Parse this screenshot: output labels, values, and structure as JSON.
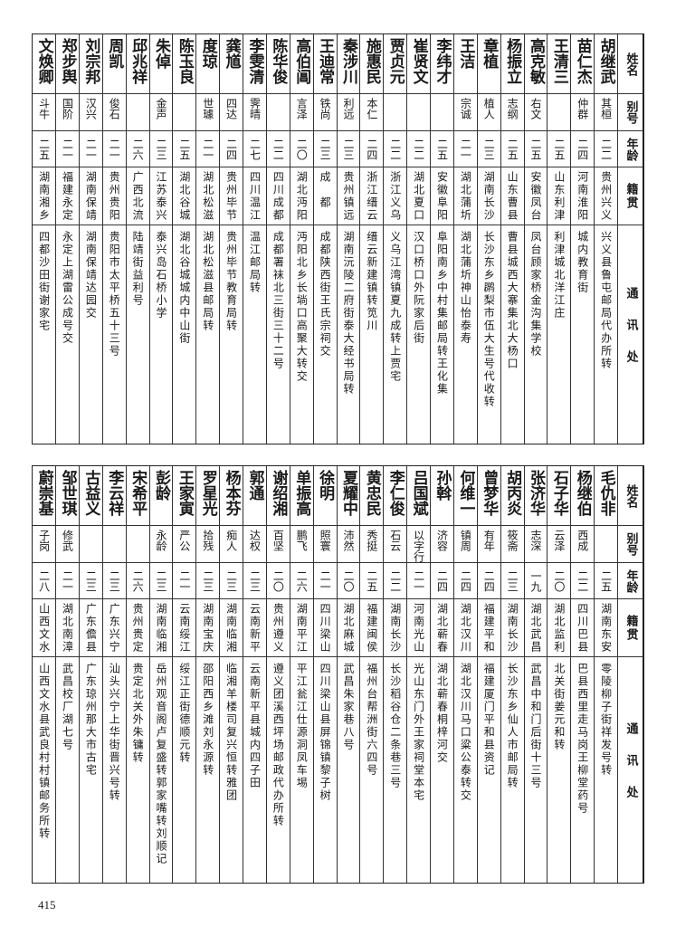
{
  "headers": {
    "name": "姓名",
    "alias": "别号",
    "age": "年龄",
    "origin": "籍贯",
    "address": "通讯处"
  },
  "top_table": [
    {
      "name": "胡继武",
      "alias": "其桓",
      "age": "二二",
      "origin": "贵州兴义",
      "address": "兴义县鲁屯邮局代办所转"
    },
    {
      "name": "苗仁杰",
      "alias": "仲群",
      "age": "二四",
      "origin": "河南淮阳",
      "address": "城内教育街"
    },
    {
      "name": "王清三",
      "alias": "",
      "age": "二五",
      "origin": "山东利津",
      "address": "利津城北洋江庄"
    },
    {
      "name": "高克敏",
      "alias": "右文",
      "age": "二五",
      "origin": "安徽凤台",
      "address": "凤台顾家桥金沟集学校"
    },
    {
      "name": "杨振立",
      "alias": "志纲",
      "age": "二五",
      "origin": "山东曹县",
      "address": "曹县城西大寨集北大杨口"
    },
    {
      "name": "章植",
      "alias": "植人",
      "age": "二三",
      "origin": "湖南长沙",
      "address": "长沙东乡䴙梨市伍大生号代收转"
    },
    {
      "name": "王洁",
      "alias": "宗诚",
      "age": "二一",
      "origin": "湖北蒲圻",
      "address": "湖北蒲圻神山怡泰寿"
    },
    {
      "name": "李纬才",
      "alias": "",
      "age": "二五",
      "origin": "安徽阜阳",
      "address": "阜阳南乡中村集邮局转王化集"
    },
    {
      "name": "崔贤文",
      "alias": "",
      "age": "二二",
      "origin": "湖北夏口",
      "address": "汉口桥口外阮家后街"
    },
    {
      "name": "贾贞元",
      "alias": "",
      "age": "二二",
      "origin": "浙江义乌",
      "address": "义乌江湾镇夏九成转上贾宅"
    },
    {
      "name": "施惠民",
      "alias": "本仁",
      "age": "二四",
      "origin": "浙江缙云",
      "address": "缙云新建镇转笕川"
    },
    {
      "name": "秦涉川",
      "alias": "利远",
      "age": "二三",
      "origin": "贵州镇远",
      "address": "湖南沅陵二府街泰大经书局转"
    },
    {
      "name": "王迪常",
      "alias": "铁尚",
      "age": "二三",
      "origin": "成　都",
      "address": "成都陕西街王氏宗祠交"
    },
    {
      "name": "高伯阊",
      "alias": "言泽",
      "age": "二〇",
      "origin": "湖北沔阳",
      "address": "沔阳北乡长埫口高聚大转交"
    },
    {
      "name": "陈华俊",
      "alias": "",
      "age": "二二",
      "origin": "四川成都",
      "address": "成都署袜北三街三十二号"
    },
    {
      "name": "李雯清",
      "alias": "霁晴",
      "age": "二七",
      "origin": "四川温江",
      "address": "温江邮局转"
    },
    {
      "name": "龚馗",
      "alias": "四达",
      "age": "二四",
      "origin": "贵州毕节",
      "address": "贵州毕节教育局转"
    },
    {
      "name": "度琼",
      "alias": "世璩",
      "age": "二一",
      "origin": "湖北松滋",
      "address": "湖北松滋县邮局转"
    },
    {
      "name": "陈玉良",
      "alias": "",
      "age": "二五",
      "origin": "湖北谷城",
      "address": "湖北谷城城内中山街"
    },
    {
      "name": "朱倬",
      "alias": "金声",
      "age": "二三",
      "origin": "江苏泰兴",
      "address": "泰兴岛石桥小学"
    },
    {
      "name": "邱兆祥",
      "alias": "",
      "age": "二六",
      "origin": "广西北流",
      "address": "陆靖街益利号"
    },
    {
      "name": "周凯",
      "alias": "俊石",
      "age": "二一",
      "origin": "贵州贵阳",
      "address": "贵阳市太平桥五十三号"
    },
    {
      "name": "刘宗邦",
      "alias": "汉兴",
      "age": "二一",
      "origin": "湖南保靖",
      "address": "湖南保靖达园交"
    },
    {
      "name": "郑步舆",
      "alias": "国阶",
      "age": "二一",
      "origin": "福建永定",
      "address": "永定上湖雷公成号交"
    },
    {
      "name": "文焕卿",
      "alias": "斗牛",
      "age": "二五",
      "origin": "湖南湘乡",
      "address": "四都沙田街谢家宅"
    }
  ],
  "bottom_table": [
    {
      "name": "毛仇非",
      "alias": "",
      "age": "二五",
      "origin": "湖南东安",
      "address": "零陵柳子街祥发号转"
    },
    {
      "name": "杨继伯",
      "alias": "西成",
      "age": "二二",
      "origin": "四川巴县",
      "address": "巴县西里走马岗王柳堂药号"
    },
    {
      "name": "石子华",
      "alias": "云泽",
      "age": "二〇",
      "origin": "湖北监利",
      "address": "北关街姜元和转"
    },
    {
      "name": "张济华",
      "alias": "志深",
      "age": "一九",
      "origin": "湖北武昌",
      "address": "武昌中和门后街十三号"
    },
    {
      "name": "胡丙炎",
      "alias": "筱斋",
      "age": "二三",
      "origin": "湖南长沙",
      "address": "长沙东乡仙人市邮局转"
    },
    {
      "name": "曾梦华",
      "alias": "有年",
      "age": "二四",
      "origin": "福建平和",
      "address": "福建厦门平和县资记"
    },
    {
      "name": "何维一",
      "alias": "镇周",
      "age": "二四",
      "origin": "湖北汉川",
      "address": "湖北汉川马口粱公泰转交"
    },
    {
      "name": "孙斡",
      "alias": "济容",
      "age": "二四",
      "origin": "湖北蕲春",
      "address": "湖北蕲春桐梓河交"
    },
    {
      "name": "吕国斌",
      "alias": "以字行",
      "age": "二一",
      "origin": "河南光山",
      "address": "光山东门外王家祠堂本宅"
    },
    {
      "name": "李仁俊",
      "alias": "石云",
      "age": "二二",
      "origin": "湖南长沙",
      "address": "长沙稻谷仓二条巷三号"
    },
    {
      "name": "黄忠民",
      "alias": "秀挺",
      "age": "二五",
      "origin": "福建闽侯",
      "address": "福州台帮洲街六四号"
    },
    {
      "name": "夏耀中",
      "alias": "沛然",
      "age": "二〇",
      "origin": "湖北麻城",
      "address": "武昌朱家巷八号"
    },
    {
      "name": "徐明",
      "alias": "照寰",
      "age": "二一",
      "origin": "四川梁山",
      "address": "四川梁山县屏锦镇黎子树"
    },
    {
      "name": "单振高",
      "alias": "鹏飞",
      "age": "二六",
      "origin": "湖南平江",
      "address": "平江瓮江仕源洞凤车埸"
    },
    {
      "name": "谢绍湘",
      "alias": "百坚",
      "age": "二〇",
      "origin": "贵州遵义",
      "address": "遵义团溪西坪场邮政代办所转"
    },
    {
      "name": "郭通",
      "alias": "达权",
      "age": "二三",
      "origin": "云南新平",
      "address": "云南新平县城内四子田"
    },
    {
      "name": "杨本芬",
      "alias": "痴人",
      "age": "二三",
      "origin": "湖南临湘",
      "address": "临湘羊楼司复兴恒转雅团"
    },
    {
      "name": "罗星光",
      "alias": "拾残",
      "age": "二三",
      "origin": "湖南宝庆",
      "address": "邵阳西乡滩刘永源转"
    },
    {
      "name": "王家寅",
      "alias": "严公",
      "age": "二一",
      "origin": "云南绥江",
      "address": "绥江正街德顺元转"
    },
    {
      "name": "彭龄",
      "alias": "永龄",
      "age": "二三",
      "origin": "湖南临湘",
      "address": "岳州观音阁卢复盛转郭家嘴转刘顺记"
    },
    {
      "name": "宋希平",
      "alias": "",
      "age": "二六",
      "origin": "贵州贵定",
      "address": "贵定北关外朱镛转"
    },
    {
      "name": "李云祥",
      "alias": "",
      "age": "二三",
      "origin": "广东兴宁",
      "address": "汕头兴宁上华街晋兴号转"
    },
    {
      "name": "古益义",
      "alias": "",
      "age": "二三",
      "origin": "广东儋县",
      "address": "广东琼州那大市古宅"
    },
    {
      "name": "邹世琪",
      "alias": "修武",
      "age": "二一",
      "origin": "湖北南漳",
      "address": "武昌校厂湖七号"
    },
    {
      "name": "蔚崇基",
      "alias": "子岗",
      "age": "二八",
      "origin": "山西文水",
      "address": "山西文水县武良村村镇邮务所转"
    }
  ],
  "page_number": "415"
}
